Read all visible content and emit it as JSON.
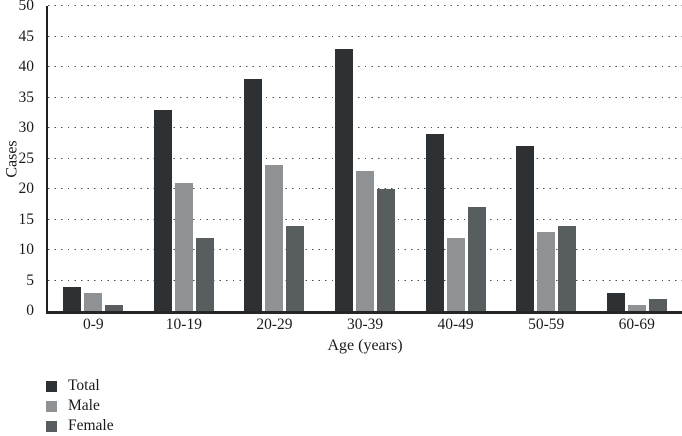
{
  "figure": {
    "background": "#ffffff"
  },
  "chart_data": {
    "type": "bar",
    "title": "",
    "categories": [
      "0-9",
      "10-19",
      "20-29",
      "30-39",
      "40-49",
      "50-59",
      "60-69"
    ],
    "series": [
      {
        "name": "Total",
        "color": "#2d3133",
        "values": [
          4,
          33,
          38,
          43,
          29,
          27,
          3
        ]
      },
      {
        "name": "Male",
        "color": "#8e9294",
        "values": [
          3,
          21,
          24,
          23,
          12,
          13,
          1
        ]
      },
      {
        "name": "Female",
        "color": "#585d60",
        "values": [
          1,
          12,
          14,
          20,
          17,
          14,
          2
        ]
      }
    ],
    "xlabel": "Age (years)",
    "ylabel": "Cases",
    "ylim": [
      0,
      50
    ],
    "yticks": [
      0,
      5,
      10,
      15,
      20,
      25,
      30,
      35,
      40,
      45,
      50
    ],
    "grid": "dotted-horizontal",
    "legend_position": "bottom-left",
    "axis_color": "#1f1f1f",
    "gridline_color": "#4d4d4d"
  }
}
